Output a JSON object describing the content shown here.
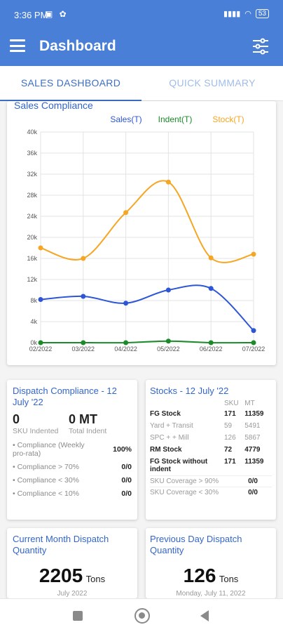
{
  "status": {
    "time": "3:36 PM",
    "battery": "53"
  },
  "appbar": {
    "title": "Dashboard"
  },
  "tabs": [
    {
      "label": "SALES DASHBOARD"
    },
    {
      "label": "QUICK SUMMARY"
    }
  ],
  "chart_data": {
    "type": "line",
    "title": "Sales Compliance",
    "categories": [
      "02/2022",
      "03/2022",
      "04/2022",
      "05/2022",
      "06/2022",
      "07/2022"
    ],
    "y_ticks": [
      "0k",
      "4k",
      "8k",
      "12k",
      "16k",
      "20k",
      "24k",
      "28k",
      "32k",
      "36k",
      "40k"
    ],
    "ylim": [
      0,
      40000
    ],
    "grid": true,
    "legend_position": "top-right",
    "series": [
      {
        "name": "Sales(T)",
        "color": "#2d56d6",
        "values": [
          8200,
          8800,
          7500,
          10000,
          10300,
          2300
        ]
      },
      {
        "name": "Indent(T)",
        "color": "#1a8a2a",
        "values": [
          0,
          0,
          0,
          300,
          0,
          0
        ]
      },
      {
        "name": "Stock(T)",
        "color": "#f5a623",
        "values": [
          18000,
          16000,
          24700,
          30500,
          16100,
          16800
        ]
      }
    ]
  },
  "dispatch": {
    "title": "Dispatch Compliance - 12 July '22",
    "sku_value": "0",
    "sku_label": "SKU Indented",
    "mt_value": "0 MT",
    "mt_label": "Total Indent",
    "rows": [
      {
        "label": "• Compliance (Weekly pro-rata)",
        "value": "100%"
      },
      {
        "label": "• Compliance > 70%",
        "value": "0/0"
      },
      {
        "label": "• Compliance < 30%",
        "value": "0/0"
      },
      {
        "label": "• Compliance < 10%",
        "value": "0/0"
      }
    ]
  },
  "stocks": {
    "title": "Stocks - 12 July '22",
    "columns": [
      "",
      "SKU",
      "MT"
    ],
    "rows": [
      {
        "label": "FG Stock",
        "sku": "171",
        "mt": "11359",
        "bold": true
      },
      {
        "label": "Yard + Transit",
        "sku": "59",
        "mt": "5491",
        "bold": false
      },
      {
        "label": "SPC + + Mill",
        "sku": "126",
        "mt": "5867",
        "bold": false
      },
      {
        "label": "RM Stock",
        "sku": "72",
        "mt": "4779",
        "bold": true
      },
      {
        "label": "FG Stock without indent",
        "sku": "171",
        "mt": "11359",
        "bold": true
      }
    ],
    "coverage": [
      {
        "label": "SKU Coverage > 90%",
        "value": "0/0"
      },
      {
        "label": "SKU Coverage < 30%",
        "value": "0/0"
      }
    ]
  },
  "month_dispatch": {
    "title": "Current Month Dispatch Quantity",
    "value": "2205",
    "unit": "Tons",
    "sub": "July 2022"
  },
  "prev_dispatch": {
    "title": "Previous Day Dispatch Quantity",
    "value": "126",
    "unit": "Tons",
    "sub": "Monday, July 11, 2022"
  }
}
